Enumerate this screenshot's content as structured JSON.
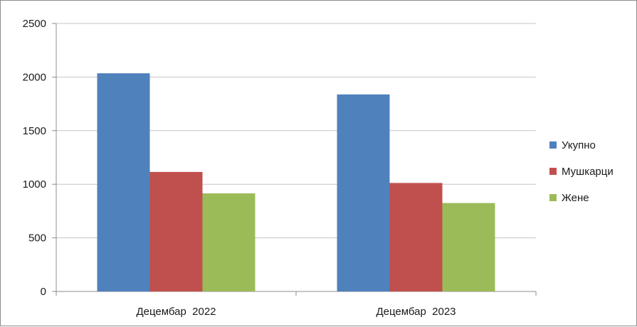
{
  "chart_data": {
    "type": "bar",
    "categories": [
      "Децембар  2022",
      "Децембар  2023"
    ],
    "series": [
      {
        "name": "Укупно",
        "color": "#4f81bd",
        "values": [
          2035,
          1838
        ]
      },
      {
        "name": "Мушкарци",
        "color": "#c0504d",
        "values": [
          1115,
          1012
        ]
      },
      {
        "name": "Жене",
        "color": "#9bbb59",
        "values": [
          915,
          825
        ]
      }
    ],
    "title": "",
    "xlabel": "",
    "ylabel": "",
    "ylim": [
      0,
      2500
    ],
    "yticks": [
      0,
      500,
      1000,
      1500,
      2000,
      2500
    ],
    "grid": true,
    "legend": "right"
  }
}
